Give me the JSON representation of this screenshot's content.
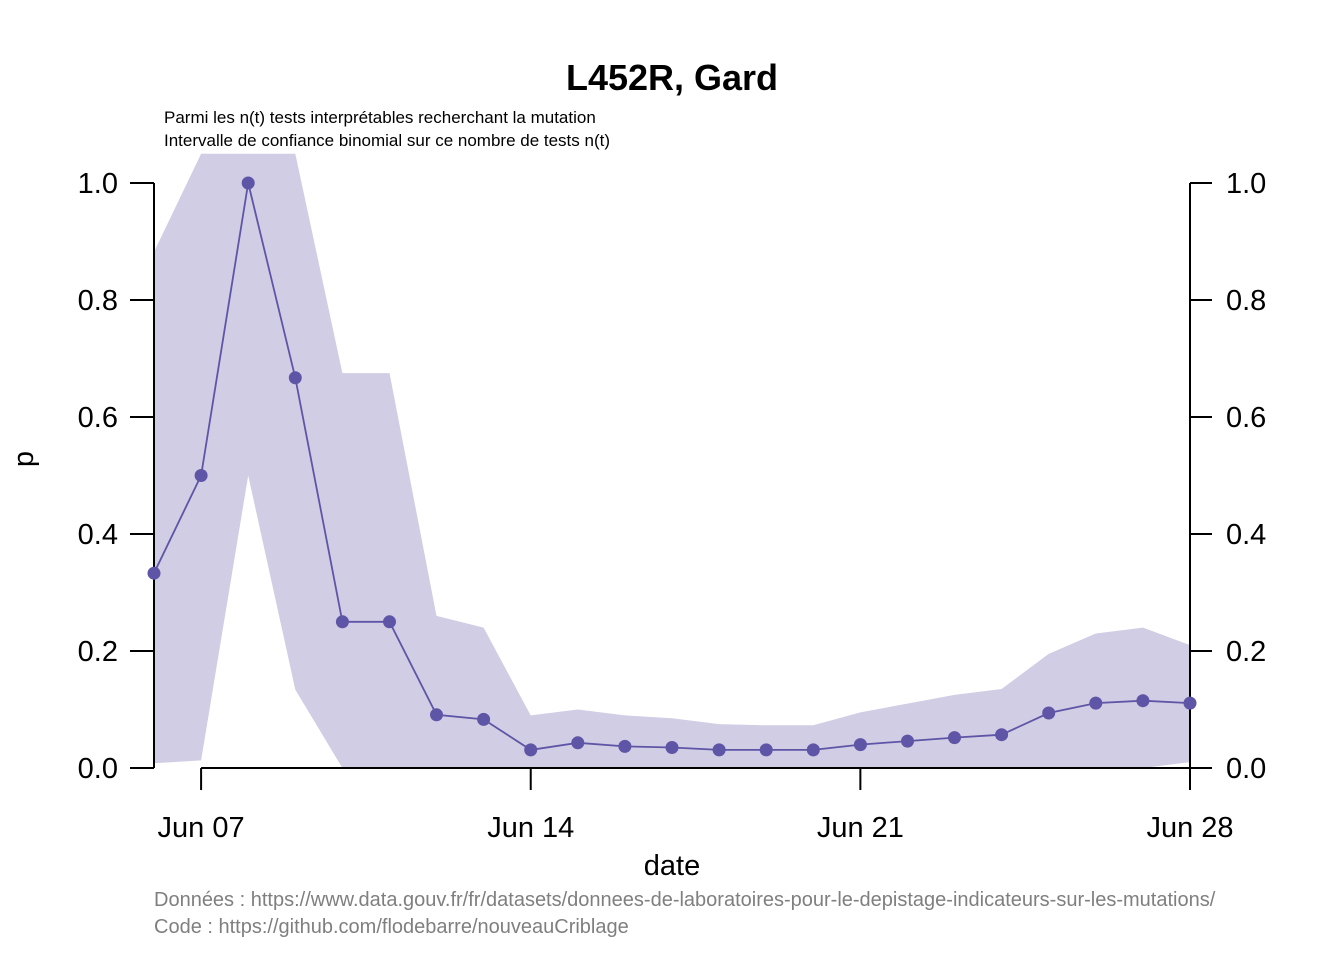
{
  "chart_data": {
    "type": "line",
    "title": "L452R, Gard",
    "subtitle_lines": [
      "Parmi les n(t) tests interprétables recherchant la mutation",
      "Intervalle de confiance binomial sur ce nombre de tests n(t)"
    ],
    "xlabel": "date",
    "ylabel": "p",
    "xlim": [
      "2021-06-06",
      "2021-06-28"
    ],
    "ylim": [
      0,
      1
    ],
    "x_ticks": [
      {
        "date": "2021-06-07",
        "label": "Jun 07"
      },
      {
        "date": "2021-06-14",
        "label": "Jun 14"
      },
      {
        "date": "2021-06-21",
        "label": "Jun 21"
      },
      {
        "date": "2021-06-28",
        "label": "Jun 28"
      }
    ],
    "y_ticks": [
      "0.0",
      "0.2",
      "0.4",
      "0.6",
      "0.8",
      "1.0"
    ],
    "y_tick_values": [
      0,
      0.2,
      0.4,
      0.6,
      0.8,
      1.0
    ],
    "grid": false,
    "right_axis": true,
    "series": [
      {
        "color": "#5e55a6",
        "band_color": "#d0cde4",
        "x": [
          "2021-06-06",
          "2021-06-07",
          "2021-06-08",
          "2021-06-09",
          "2021-06-10",
          "2021-06-11",
          "2021-06-12",
          "2021-06-13",
          "2021-06-14",
          "2021-06-15",
          "2021-06-16",
          "2021-06-17",
          "2021-06-18",
          "2021-06-19",
          "2021-06-20",
          "2021-06-21",
          "2021-06-22",
          "2021-06-23",
          "2021-06-24",
          "2021-06-25",
          "2021-06-26",
          "2021-06-27",
          "2021-06-28"
        ],
        "values": [
          0.333,
          0.5,
          1.0,
          0.667,
          0.25,
          0.25,
          0.091,
          0.083,
          0.031,
          0.043,
          0.037,
          0.035,
          0.031,
          0.031,
          0.031,
          0.04,
          0.046,
          0.052,
          0.057,
          0.094,
          0.111,
          0.115,
          0.111
        ],
        "lower": [
          0.008,
          0.013,
          0.5,
          0.134,
          0.0,
          0.0,
          0.0,
          0.0,
          0.0,
          0.0,
          0.0,
          0.0,
          0.0,
          0.0,
          0.0,
          0.0,
          0.0,
          0.0,
          0.0,
          0.0,
          0.0,
          0.0,
          0.01
        ],
        "upper": [
          0.882,
          1.05,
          1.05,
          1.05,
          0.675,
          0.675,
          0.26,
          0.24,
          0.09,
          0.1,
          0.09,
          0.085,
          0.075,
          0.073,
          0.073,
          0.095,
          0.11,
          0.125,
          0.135,
          0.195,
          0.23,
          0.24,
          0.21
        ]
      }
    ]
  },
  "footer": {
    "data_line": "Données : https://www.data.gouv.fr/fr/datasets/donnees-de-laboratoires-pour-le-depistage-indicateurs-sur-les-mutations/",
    "code_line": "Code : https://github.com/flodebarre/nouveauCriblage"
  }
}
